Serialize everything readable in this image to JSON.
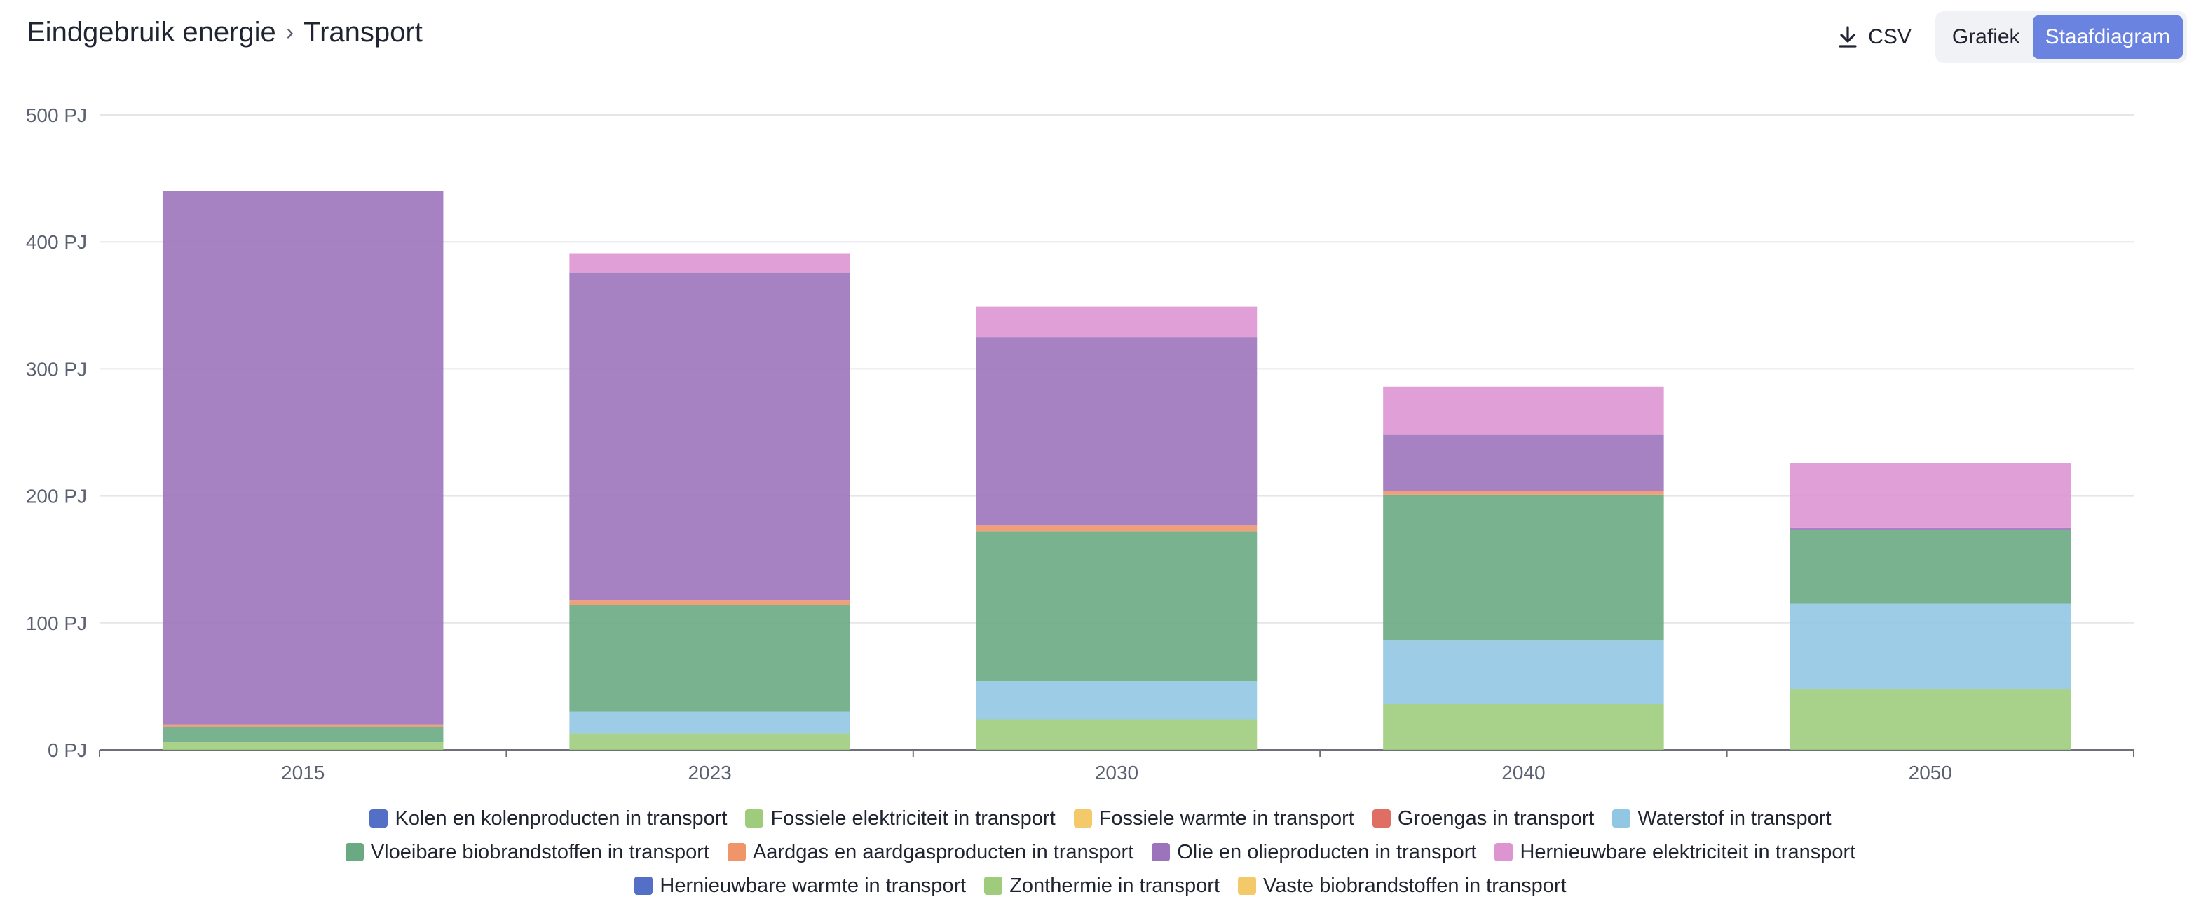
{
  "header": {
    "breadcrumb": [
      "Eindgebruik energie",
      "Transport"
    ],
    "csv_label": "CSV",
    "toggle": [
      "Grafiek",
      "Staafdiagram"
    ],
    "active_toggle": "Staafdiagram",
    "accent_color": "#6a82e0"
  },
  "chart_data": {
    "type": "bar",
    "stacked": true,
    "title": "",
    "xlabel": "",
    "ylabel": "",
    "unit": "PJ",
    "ylim": [
      0,
      500
    ],
    "yticks": [
      "0 PJ",
      "100 PJ",
      "200 PJ",
      "300 PJ",
      "400 PJ",
      "500 PJ"
    ],
    "ytick_values": [
      0,
      100,
      200,
      300,
      400,
      500
    ],
    "grid": true,
    "legend_position": "bottom",
    "categories": [
      "2015",
      "2023",
      "2030",
      "2040",
      "2050"
    ],
    "series": [
      {
        "name": "Kolen en kolenproducten in transport",
        "color": "#5470c6",
        "values": [
          0,
          0,
          0,
          0,
          0
        ]
      },
      {
        "name": "Fossiele elektriciteit in transport",
        "color": "#9fcc7c",
        "values": [
          6,
          13,
          24,
          36,
          48
        ]
      },
      {
        "name": "Fossiele warmte in transport",
        "color": "#f4c96a",
        "values": [
          0,
          0,
          0,
          0,
          0
        ]
      },
      {
        "name": "Groengas in transport",
        "color": "#df6e63",
        "values": [
          0,
          0,
          0,
          0,
          0
        ]
      },
      {
        "name": "Waterstof in transport",
        "color": "#92c7e4",
        "values": [
          0,
          17,
          30,
          50,
          67
        ]
      },
      {
        "name": "Vloeibare biobrandstoffen in transport",
        "color": "#6aaa82",
        "values": [
          12,
          84,
          118,
          115,
          58
        ]
      },
      {
        "name": "Aardgas en aardgasproducten in transport",
        "color": "#f0956a",
        "values": [
          2,
          4,
          5,
          3,
          0
        ]
      },
      {
        "name": "Olie en olieproducten in transport",
        "color": "#9c74bb",
        "values": [
          420,
          258,
          148,
          44,
          2
        ]
      },
      {
        "name": "Hernieuwbare elektriciteit in transport",
        "color": "#dd95d1",
        "values": [
          0,
          15,
          24,
          38,
          51
        ]
      },
      {
        "name": "Hernieuwbare warmte in transport",
        "color": "#5470c6",
        "values": [
          0,
          0,
          0,
          0,
          0
        ]
      },
      {
        "name": "Zonthermie in transport",
        "color": "#9fcc7c",
        "values": [
          0,
          0,
          0,
          0,
          0
        ]
      },
      {
        "name": "Vaste biobrandstoffen in transport",
        "color": "#f4c96a",
        "values": [
          0,
          0,
          0,
          0,
          0
        ]
      }
    ]
  }
}
